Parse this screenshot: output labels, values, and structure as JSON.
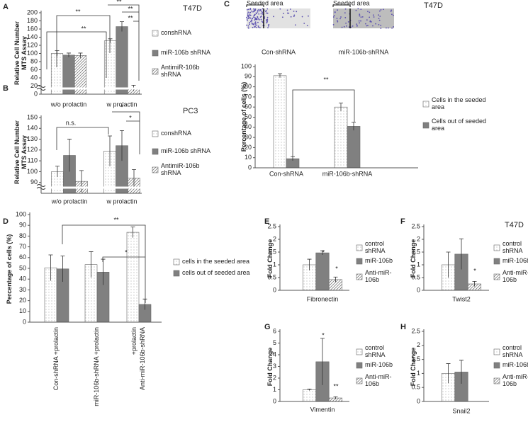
{
  "chart_data": [
    {
      "type": "bar",
      "panel": "A",
      "title": "T47D",
      "y_label": "Relative Cell Number MTS Assay",
      "categories": [
        "w/o prolactin",
        "w prolactin"
      ],
      "series": [
        {
          "name": "conshRNA",
          "color": "#ffffff",
          "hatch": "dots",
          "values": [
            100,
            131
          ],
          "errors": [
            7,
            5
          ]
        },
        {
          "name": "miR-106b shRNA",
          "color": "#808080",
          "hatch": "none",
          "values": [
            96,
            166
          ],
          "errors": [
            5,
            12
          ]
        },
        {
          "name": "AntimiR-106b shRNA",
          "color": "#ffffff",
          "hatch": "diagonal",
          "values": [
            95,
            15
          ],
          "errors": [
            6,
            7
          ]
        }
      ],
      "ylim": [
        0,
        200
      ],
      "yticks": [
        0,
        20,
        40,
        60,
        80,
        100,
        120,
        140,
        160,
        180,
        200
      ],
      "axis_break": true,
      "annotations": [
        "**",
        "**",
        "**",
        "**",
        "**"
      ]
    },
    {
      "type": "bar",
      "panel": "B",
      "title": "PC3",
      "y_label": "Relative Cell Number MTS Assay",
      "categories": [
        "w/o prolactin",
        "w prolactin"
      ],
      "series": [
        {
          "name": "conshRNA",
          "color": "#ffffff",
          "hatch": "dots",
          "values": [
            100,
            119
          ],
          "errors": [
            5,
            14
          ]
        },
        {
          "name": "miR-106b shRNA",
          "color": "#808080",
          "hatch": "none",
          "values": [
            115,
            124
          ],
          "errors": [
            15,
            14
          ]
        },
        {
          "name": "AntimiR-106b shRNA",
          "color": "#ffffff",
          "hatch": "diagonal",
          "values": [
            91,
            94
          ],
          "errors": [
            10,
            8
          ]
        }
      ],
      "ylim": [
        80,
        150
      ],
      "yticks": [
        90,
        100,
        110,
        120,
        130,
        140,
        150
      ],
      "axis_break": true,
      "annotations": [
        "n.s.",
        "*",
        "*"
      ]
    },
    {
      "type": "bar",
      "panel": "C",
      "title": "T47D",
      "y_label": "Percentage of cells (%)",
      "images": [
        {
          "label": "Seeded area",
          "caption": "Con-shRNA"
        },
        {
          "label": "Seeded area",
          "caption": "miR-106b-shRNA"
        }
      ],
      "categories": [
        "Con-shRNA",
        "miR-106b-shRNA"
      ],
      "series": [
        {
          "name": "Cells in the seeded area",
          "color": "#ffffff",
          "hatch": "dots",
          "values": [
            91,
            60
          ],
          "errors": [
            2,
            4
          ]
        },
        {
          "name": "Cells out of seeded area",
          "color": "#808080",
          "hatch": "none",
          "values": [
            9,
            41
          ],
          "errors": [
            2,
            4
          ]
        }
      ],
      "ylim": [
        0,
        100
      ],
      "yticks": [
        0,
        10,
        20,
        30,
        40,
        50,
        60,
        70,
        80,
        90,
        100
      ],
      "annotations": [
        "**"
      ]
    },
    {
      "type": "bar",
      "panel": "D",
      "y_label": "Percentage of cells (%)",
      "categories": [
        "Con-shRNA +prolactin",
        "miR-106b-shRNA +prolactin",
        "Anti-miR-106b-shRNA +prolactin"
      ],
      "series": [
        {
          "name": "cells in the seeded area",
          "color": "#ffffff",
          "hatch": "dots",
          "values": [
            50.5,
            53.5,
            83.5
          ],
          "errors": [
            12,
            12,
            5
          ]
        },
        {
          "name": "cells out of seeded area",
          "color": "#808080",
          "hatch": "none",
          "values": [
            49.5,
            46.5,
            16.5
          ],
          "errors": [
            12,
            12,
            5
          ]
        }
      ],
      "ylim": [
        0,
        100
      ],
      "yticks": [
        0,
        10,
        20,
        30,
        40,
        50,
        60,
        70,
        80,
        90,
        100
      ],
      "annotations": [
        "**",
        "*"
      ]
    },
    {
      "type": "bar",
      "panel": "E",
      "y_label": "Fold Change",
      "categories": [
        "Fibronectin"
      ],
      "series": [
        {
          "name": "control shRNA",
          "color": "#ffffff",
          "hatch": "dots",
          "values": [
            1
          ],
          "errors": [
            0.22
          ]
        },
        {
          "name": "miR-106b",
          "color": "#808080",
          "hatch": "none",
          "values": [
            1.47
          ],
          "errors": [
            0.08
          ]
        },
        {
          "name": "Anti-miR-106b",
          "color": "#ffffff",
          "hatch": "diagonal",
          "values": [
            0.42
          ],
          "errors": [
            0.1
          ]
        }
      ],
      "ylim": [
        0,
        2.5
      ],
      "yticks": [
        0,
        0.5,
        1,
        1.5,
        2,
        2.5
      ],
      "annotations": [
        "*",
        "*"
      ]
    },
    {
      "type": "bar",
      "panel": "F",
      "title": "T47D",
      "y_label": "Fold Change",
      "categories": [
        "Twist2"
      ],
      "series": [
        {
          "name": "control shRNA",
          "color": "#ffffff",
          "hatch": "dots",
          "values": [
            1
          ],
          "errors": [
            0.5
          ]
        },
        {
          "name": "miR-106b",
          "color": "#808080",
          "hatch": "none",
          "values": [
            1.42
          ],
          "errors": [
            0.6
          ]
        },
        {
          "name": "Anti-miR-106b",
          "color": "#ffffff",
          "hatch": "diagonal",
          "values": [
            0.25
          ],
          "errors": [
            0.1
          ]
        }
      ],
      "ylim": [
        0,
        2.5
      ],
      "yticks": [
        0,
        0.5,
        1,
        1.5,
        2,
        2.5
      ],
      "annotations": [
        "*"
      ]
    },
    {
      "type": "bar",
      "panel": "G",
      "y_label": "Fold Change",
      "categories": [
        "Vimentin"
      ],
      "series": [
        {
          "name": "control shRNA",
          "color": "#ffffff",
          "hatch": "dots",
          "values": [
            1
          ],
          "errors": [
            0.07
          ]
        },
        {
          "name": "miR-106b",
          "color": "#808080",
          "hatch": "none",
          "values": [
            3.4
          ],
          "errors": [
            2
          ]
        },
        {
          "name": "Anti-miR-106b",
          "color": "#ffffff",
          "hatch": "diagonal",
          "values": [
            0.3
          ],
          "errors": [
            0.1
          ]
        }
      ],
      "ylim": [
        0,
        6
      ],
      "yticks": [
        0,
        1,
        2,
        3,
        4,
        5,
        6
      ],
      "annotations": [
        "*",
        "**"
      ]
    },
    {
      "type": "bar",
      "panel": "H",
      "y_label": "Fold Change",
      "categories": [
        "Snail2"
      ],
      "series": [
        {
          "name": "control shRNA",
          "color": "#ffffff",
          "hatch": "dots",
          "values": [
            1
          ],
          "errors": [
            0.35
          ]
        },
        {
          "name": "miR-106b",
          "color": "#808080",
          "hatch": "none",
          "values": [
            1.05
          ],
          "errors": [
            0.42
          ]
        },
        {
          "name": "Anti-miR-106b",
          "color": "#ffffff",
          "hatch": "diagonal",
          "values": [
            null
          ],
          "errors": [
            null
          ]
        }
      ],
      "ylim": [
        0,
        2.5
      ],
      "yticks": [
        0,
        0.5,
        1,
        1.5,
        2,
        2.5
      ],
      "annotations": []
    }
  ]
}
